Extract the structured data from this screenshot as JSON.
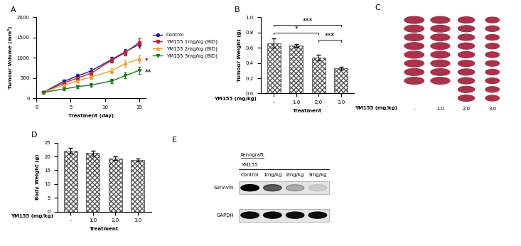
{
  "chart_data": [
    {
      "panel": "A",
      "type": "line",
      "xlabel": "Treatment (day)",
      "ylabel": "Tumour Volume (mm³)",
      "x": [
        1,
        4,
        6,
        8,
        11,
        13,
        15
      ],
      "xlim": [
        0,
        16
      ],
      "xticks": [
        0,
        5,
        10,
        15
      ],
      "ylim": [
        0,
        2000
      ],
      "yticks": [
        0,
        500,
        1000,
        1500,
        2000
      ],
      "legend": "right",
      "series": [
        {
          "name": "Control",
          "color": "#1c1c8f",
          "marker": "circle",
          "values": [
            150,
            420,
            550,
            680,
            960,
            1150,
            1330
          ],
          "errors": [
            15,
            45,
            55,
            60,
            60,
            70,
            80
          ]
        },
        {
          "name": "YM155 1mg/kg (BID)",
          "color": "#c0282d",
          "marker": "square",
          "values": [
            150,
            380,
            500,
            620,
            940,
            1130,
            1380
          ],
          "errors": [
            15,
            40,
            50,
            55,
            60,
            65,
            90
          ]
        },
        {
          "name": "YM155 2mg/kg (BID)",
          "color": "#f0a030",
          "marker": "triangle",
          "values": [
            150,
            330,
            430,
            530,
            680,
            860,
            970
          ],
          "errors": [
            15,
            35,
            45,
            50,
            60,
            80,
            90
          ]
        },
        {
          "name": "YM155 3mg/kg (BID)",
          "color": "#1a7a1a",
          "marker": "triangle_down",
          "values": [
            150,
            230,
            290,
            330,
            430,
            560,
            690
          ],
          "errors": [
            15,
            30,
            35,
            40,
            50,
            70,
            80
          ]
        }
      ],
      "annotations": [
        {
          "text": "*",
          "series": "YM155 2mg/kg (BID)"
        },
        {
          "text": "**",
          "series": "YM155 3mg/kg (BID)"
        }
      ]
    },
    {
      "panel": "B",
      "type": "bar",
      "ylabel": "Tumour Weight (g)",
      "xlabel": "Treatment",
      "row_label": "YM155 (mg/kg)",
      "categories": [
        "-",
        "1.0",
        "2.0",
        "3.0"
      ],
      "values": [
        0.66,
        0.63,
        0.47,
        0.33
      ],
      "errors": [
        0.06,
        0.02,
        0.04,
        0.02
      ],
      "color": "#555555",
      "ylim": [
        0,
        1.0
      ],
      "yticks": [
        0.0,
        0.2,
        0.4,
        0.6,
        0.8,
        1.0
      ],
      "comparisons": [
        {
          "pair": [
            0,
            3
          ],
          "label": "***",
          "y": 0.9
        },
        {
          "pair": [
            0,
            2
          ],
          "label": "*",
          "y": 0.8
        },
        {
          "pair": [
            2,
            3
          ],
          "label": "***",
          "y": 0.7
        }
      ]
    },
    {
      "panel": "C",
      "type": "image",
      "row_label": "YM155 (mg/kg)",
      "categories": [
        "-",
        "1.0",
        "2.0",
        "3.0"
      ],
      "counts": [
        8,
        8,
        10,
        10
      ],
      "color": "#a8324a"
    },
    {
      "panel": "D",
      "type": "bar",
      "ylabel": "Body Weight (g)",
      "xlabel": "Treatment",
      "row_label": "YM155 (mg/kg)",
      "categories": [
        "-",
        "1.0",
        "2.0",
        "3.0"
      ],
      "values": [
        22.0,
        21.3,
        19.3,
        18.7
      ],
      "errors": [
        1.0,
        0.9,
        0.7,
        0.6
      ],
      "color": "#555555",
      "ylim": [
        0,
        25
      ],
      "yticks": [
        0,
        5,
        10,
        15,
        20,
        25
      ]
    },
    {
      "panel": "E",
      "type": "blot",
      "title": "Xenograft",
      "subtitle": "YM155",
      "lanes": [
        "Control",
        "1mg/kg",
        "2mg/kg",
        "3mg/kg"
      ],
      "rows": [
        {
          "name": "Survivin",
          "intensity": [
            1.0,
            0.6,
            0.25,
            0.1
          ]
        },
        {
          "name": "GAPDH",
          "intensity": [
            0.95,
            0.95,
            0.95,
            0.95
          ]
        }
      ]
    }
  ]
}
